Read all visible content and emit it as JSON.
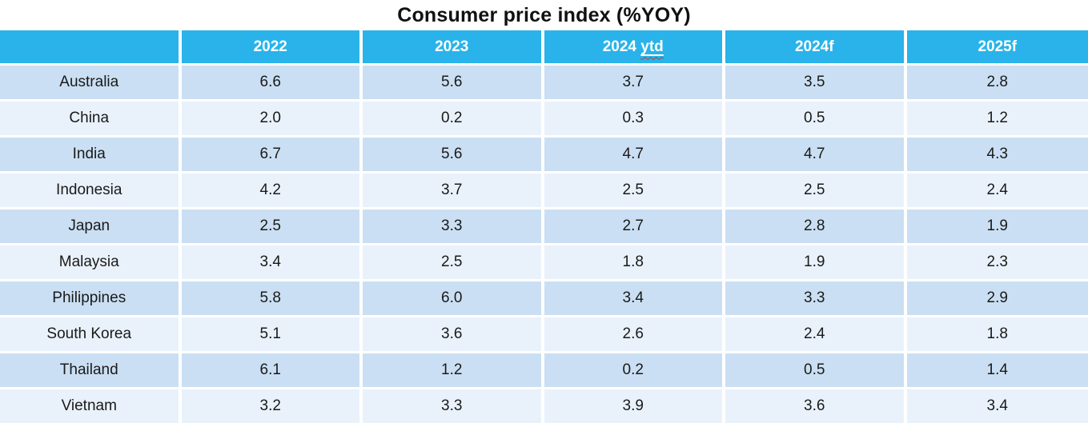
{
  "title": "Consumer price index (%YOY)",
  "table": {
    "headers": [
      "",
      "2022",
      "2023",
      "2024 ytd",
      "2024f",
      "2025f"
    ],
    "header_ytd": {
      "prefix": "2024",
      "underlined": "ytd"
    },
    "rows": [
      {
        "country": "Australia",
        "values": [
          "6.6",
          "5.6",
          "3.7",
          "3.5",
          "2.8"
        ]
      },
      {
        "country": "China",
        "values": [
          "2.0",
          "0.2",
          "0.3",
          "0.5",
          "1.2"
        ]
      },
      {
        "country": "India",
        "values": [
          "6.7",
          "5.6",
          "4.7",
          "4.7",
          "4.3"
        ]
      },
      {
        "country": "Indonesia",
        "values": [
          "4.2",
          "3.7",
          "2.5",
          "2.5",
          "2.4"
        ]
      },
      {
        "country": "Japan",
        "values": [
          "2.5",
          "3.3",
          "2.7",
          "2.8",
          "1.9"
        ]
      },
      {
        "country": "Malaysia",
        "values": [
          "3.4",
          "2.5",
          "1.8",
          "1.9",
          "2.3"
        ]
      },
      {
        "country": "Philippines",
        "values": [
          "5.8",
          "6.0",
          "3.4",
          "3.3",
          "2.9"
        ]
      },
      {
        "country": "South Korea",
        "values": [
          "5.1",
          "3.6",
          "2.6",
          "2.4",
          "1.8"
        ]
      },
      {
        "country": "Thailand",
        "values": [
          "6.1",
          "1.2",
          "0.2",
          "0.5",
          "1.4"
        ]
      },
      {
        "country": "Vietnam",
        "values": [
          "3.2",
          "3.3",
          "3.9",
          "3.6",
          "3.4"
        ]
      }
    ]
  },
  "colors": {
    "header_bg": "#29B3EA",
    "header_text": "#FFFFFF",
    "row_odd_bg": "#CADFF3",
    "row_even_bg": "#E9F2FB",
    "body_text": "#1A1A1A",
    "title_text": "#111111",
    "grid": "#FFFFFF",
    "spellcheck_squiggle": "#C0392B"
  },
  "chart_data": {
    "type": "table",
    "title": "Consumer price index (%YOY)",
    "columns": [
      "2022",
      "2023",
      "2024 ytd",
      "2024f",
      "2025f"
    ],
    "rows": [
      {
        "label": "Australia",
        "values": [
          6.6,
          5.6,
          3.7,
          3.5,
          2.8
        ]
      },
      {
        "label": "China",
        "values": [
          2.0,
          0.2,
          0.3,
          0.5,
          1.2
        ]
      },
      {
        "label": "India",
        "values": [
          6.7,
          5.6,
          4.7,
          4.7,
          4.3
        ]
      },
      {
        "label": "Indonesia",
        "values": [
          4.2,
          3.7,
          2.5,
          2.5,
          2.4
        ]
      },
      {
        "label": "Japan",
        "values": [
          2.5,
          3.3,
          2.7,
          2.8,
          1.9
        ]
      },
      {
        "label": "Malaysia",
        "values": [
          3.4,
          2.5,
          1.8,
          1.9,
          2.3
        ]
      },
      {
        "label": "Philippines",
        "values": [
          5.8,
          6.0,
          3.4,
          3.3,
          2.9
        ]
      },
      {
        "label": "South Korea",
        "values": [
          5.1,
          3.6,
          2.6,
          2.4,
          1.8
        ]
      },
      {
        "label": "Thailand",
        "values": [
          6.1,
          1.2,
          0.2,
          0.5,
          1.4
        ]
      },
      {
        "label": "Vietnam",
        "values": [
          3.2,
          3.3,
          3.9,
          3.6,
          3.4
        ]
      }
    ],
    "layout": {
      "header_row": true,
      "banded_rows": true,
      "values_unit": "% YoY"
    }
  }
}
